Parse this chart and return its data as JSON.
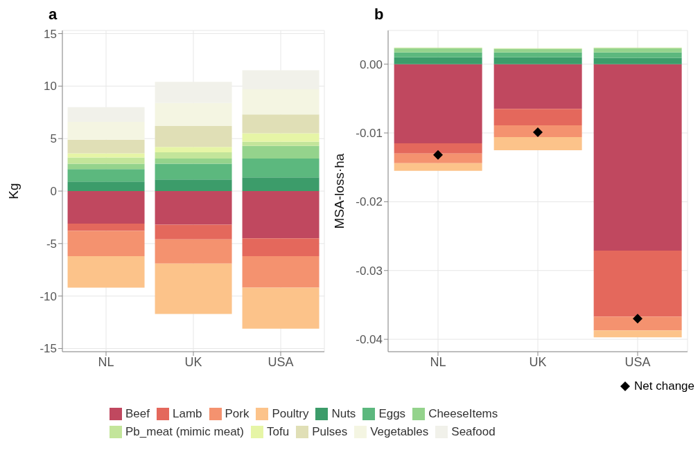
{
  "chart_data": [
    {
      "type": "bar",
      "title": "a",
      "ylabel": "Kg",
      "categories": [
        "NL",
        "UK",
        "USA"
      ],
      "stacked": true,
      "grid": true,
      "legend": "bottom",
      "ylim": [
        -15.3,
        15.3
      ],
      "yticks": [
        -15,
        -10,
        -5,
        0,
        5,
        10,
        15
      ],
      "series": [
        {
          "name": "Beef",
          "color": "#c0485f",
          "values": [
            -3.1,
            -3.2,
            -4.5
          ]
        },
        {
          "name": "Lamb",
          "color": "#e4685c",
          "values": [
            -0.7,
            -1.4,
            -1.7
          ]
        },
        {
          "name": "Pork",
          "color": "#f4926f",
          "values": [
            -2.4,
            -2.3,
            -3.0
          ]
        },
        {
          "name": "Poultry",
          "color": "#fcc38a",
          "values": [
            -3.0,
            -4.8,
            -3.9
          ]
        },
        {
          "name": "Nuts",
          "color": "#3c9c6a",
          "values": [
            0.9,
            1.1,
            1.3
          ]
        },
        {
          "name": "Eggs",
          "color": "#5cb87e",
          "values": [
            1.2,
            1.5,
            1.8
          ]
        },
        {
          "name": "CheeseItems",
          "color": "#94d38c",
          "values": [
            0.5,
            0.5,
            1.2
          ]
        },
        {
          "name": "Pb_meat (mimic meat)",
          "color": "#c3e59a",
          "values": [
            0.6,
            0.6,
            0.4
          ]
        },
        {
          "name": "Tofu",
          "color": "#e6f5a6",
          "values": [
            0.4,
            0.5,
            0.8
          ]
        },
        {
          "name": "Pulses",
          "color": "#e0dfb6",
          "values": [
            1.3,
            2.0,
            1.8
          ]
        },
        {
          "name": "Vegetables",
          "color": "#f4f5e2",
          "values": [
            1.7,
            2.2,
            2.4
          ]
        },
        {
          "name": "Seafood",
          "color": "#f1f1ea",
          "values": [
            1.4,
            2.0,
            1.8
          ]
        }
      ]
    },
    {
      "type": "bar",
      "title": "b",
      "ylabel": "MSA-loss·ha",
      "categories": [
        "NL",
        "UK",
        "USA"
      ],
      "stacked": true,
      "grid": true,
      "legend": "bottom",
      "ylim": [
        -0.0418,
        0.0049
      ],
      "yticks": [
        -0.04,
        -0.03,
        -0.02,
        -0.01,
        {
          "value": 0,
          "label": "0.00"
        }
      ],
      "series": [
        {
          "name": "Beef",
          "color": "#c0485f",
          "values": [
            -0.0115,
            -0.0065,
            -0.0271
          ]
        },
        {
          "name": "Lamb",
          "color": "#e4685c",
          "values": [
            -0.0015,
            -0.0024,
            -0.0096
          ]
        },
        {
          "name": "Pork",
          "color": "#f4926f",
          "values": [
            -0.0014,
            -0.0017,
            -0.002
          ]
        },
        {
          "name": "Poultry",
          "color": "#fcc38a",
          "values": [
            -0.0011,
            -0.0019,
            -0.001
          ]
        },
        {
          "name": "Nuts",
          "color": "#3c9c6a",
          "values": [
            0.001,
            0.001,
            0.0009
          ]
        },
        {
          "name": "Eggs",
          "color": "#5cb87e",
          "values": [
            0.0007,
            0.0007,
            0.0008
          ]
        },
        {
          "name": "CheeseItems",
          "color": "#94d38c",
          "values": [
            0.0006,
            0.0005,
            0.0006
          ]
        },
        {
          "name": "Pb_meat (mimic meat)",
          "color": "#c3e59a",
          "values": [
            0.0001,
            0.0001,
            0.0001
          ]
        },
        {
          "name": "Tofu",
          "color": "#e6f5a6",
          "values": [
            0,
            0,
            0
          ]
        },
        {
          "name": "Pulses",
          "color": "#e0dfb6",
          "values": [
            0,
            0,
            0
          ]
        },
        {
          "name": "Vegetables",
          "color": "#f4f5e2",
          "values": [
            0,
            0,
            0
          ]
        },
        {
          "name": "Seafood",
          "color": "#f1f1ea",
          "values": [
            0,
            0,
            0
          ]
        },
        {
          "name": "Net change",
          "type": "scatter",
          "marker": "diamond",
          "color": "#000000",
          "x": [
            "NL",
            "UK",
            "USA"
          ],
          "values": [
            -0.0132,
            -0.0099,
            -0.037
          ]
        }
      ]
    }
  ]
}
